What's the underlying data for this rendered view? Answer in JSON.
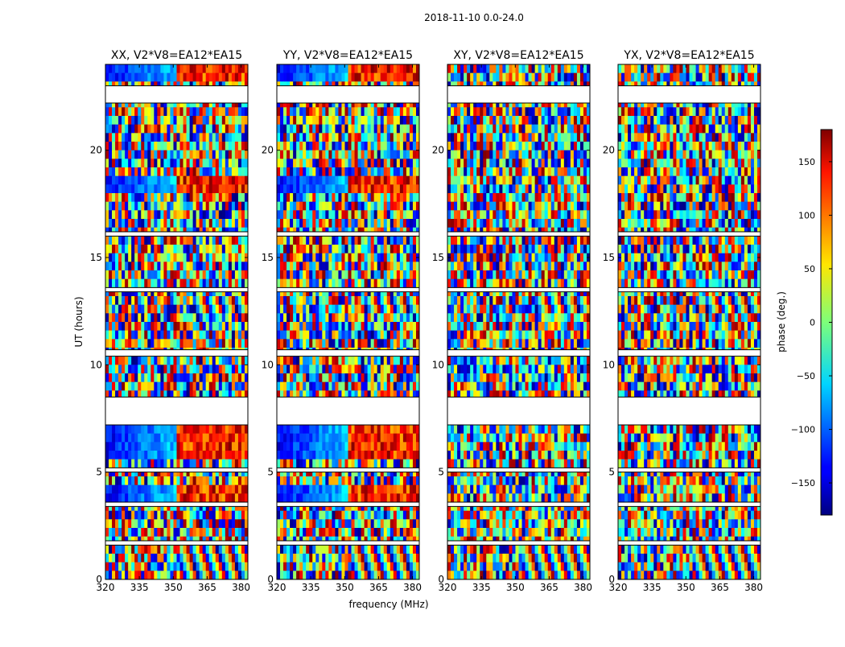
{
  "figure": {
    "suptitle": "2018-11-10 0.0-24.0",
    "xlabel": "frequency (MHz)",
    "ylabel": "UT (hours)"
  },
  "chart_data": {
    "type": "heatmap",
    "x_range_mhz": [
      320,
      383
    ],
    "y_range_hours": [
      0,
      24
    ],
    "x_ticks": [
      320,
      335,
      350,
      365,
      380
    ],
    "y_ticks": [
      0,
      5,
      10,
      15,
      20
    ],
    "panels": [
      {
        "title": "XX, V2*V8=EA12*EA15",
        "polarization": "XX",
        "coherent_phase": true
      },
      {
        "title": "YY, V2*V8=EA12*EA15",
        "polarization": "YY",
        "coherent_phase": true
      },
      {
        "title": "XY, V2*V8=EA12*EA15",
        "polarization": "XY",
        "coherent_phase": false
      },
      {
        "title": "YX, V2*V8=EA12*EA15",
        "polarization": "YX",
        "coherent_phase": false
      }
    ],
    "gaps_hours": [
      [
        7.2,
        8.5
      ],
      [
        22.2,
        23.0
      ],
      [
        10.4,
        10.7
      ],
      [
        1.6,
        1.8
      ],
      [
        3.4,
        3.6
      ],
      [
        5.0,
        5.2
      ],
      [
        13.4,
        13.6
      ],
      [
        16.0,
        16.2
      ]
    ],
    "colorbar": {
      "label": "phase (deg.)",
      "range": [
        -180,
        180
      ],
      "ticks": [
        -150,
        -100,
        -50,
        0,
        50,
        100,
        150
      ],
      "tick_labels": [
        "−150",
        "−100",
        "−50",
        "0",
        "50",
        "100",
        "150"
      ],
      "colormap": "jet"
    }
  }
}
